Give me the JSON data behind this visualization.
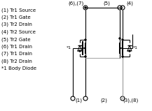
{
  "figsize": [
    2.17,
    1.59
  ],
  "dpi": 100,
  "bg_color": "#ffffff",
  "text_color": "#000000",
  "legend_lines": [
    "(1) Tr1 Source",
    "(2) Tr1 Gate",
    "(3) Tr2 Drain",
    "(4) Tr2 Source",
    "(5) Tr2 Gate",
    "(6) Tr1 Drain",
    "(7) Tr1 Drain",
    "(8) Tr2 Drain"
  ],
  "footnote": "*1 Body Diode",
  "font_size": 5.0,
  "line_color": "#000000",
  "gray_color": "#aaaaaa"
}
